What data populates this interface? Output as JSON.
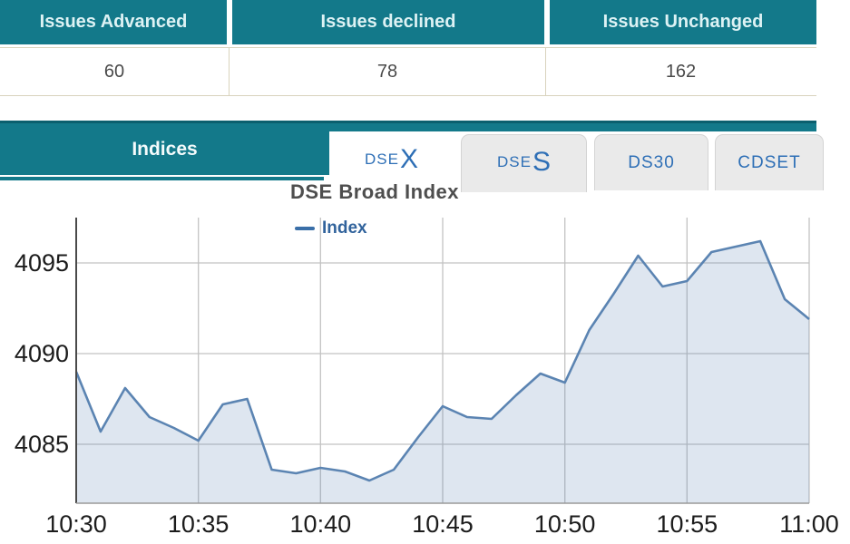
{
  "summary_table": {
    "columns": [
      {
        "header": "Issues Advanced",
        "value": "60"
      },
      {
        "header": "Issues declined",
        "value": "78"
      },
      {
        "header": "Issues Unchanged",
        "value": "162"
      }
    ]
  },
  "indices_panel": {
    "title": "Indices",
    "tabs": [
      {
        "text": "DSE",
        "big": "X",
        "active": true
      },
      {
        "text": "DSE",
        "big": "S",
        "active": false
      },
      {
        "text": "DS30",
        "big": "",
        "active": false
      },
      {
        "text": "CDSET",
        "big": "",
        "active": false
      }
    ]
  },
  "chart": {
    "title": "DSE Broad Index",
    "legend_label": "Index"
  },
  "chart_data": {
    "type": "area",
    "title": "DSE Broad Index",
    "legend": [
      "Index"
    ],
    "legend_position": "top-center-inside",
    "grid": true,
    "x": [
      "10:30",
      "10:31",
      "10:32",
      "10:33",
      "10:34",
      "10:35",
      "10:36",
      "10:37",
      "10:38",
      "10:39",
      "10:40",
      "10:41",
      "10:42",
      "10:43",
      "10:44",
      "10:45",
      "10:46",
      "10:47",
      "10:48",
      "10:49",
      "10:50",
      "10:51",
      "10:52",
      "10:53",
      "10:54",
      "10:55",
      "10:56",
      "10:57",
      "10:58",
      "10:59",
      "11:00"
    ],
    "x_tick_labels": [
      "10:30",
      "10:35",
      "10:40",
      "10:45",
      "10:50",
      "10:55",
      "11:00"
    ],
    "series": [
      {
        "name": "Index",
        "values": [
          4089.0,
          4085.7,
          4088.1,
          4086.5,
          4085.9,
          4085.2,
          4087.2,
          4087.5,
          4083.6,
          4083.4,
          4083.7,
          4083.5,
          4083.0,
          4083.6,
          4085.4,
          4087.1,
          4086.5,
          4086.4,
          4087.7,
          4088.9,
          4088.4,
          4091.3,
          4093.3,
          4095.4,
          4093.7,
          4094.0,
          4095.6,
          4095.9,
          4096.2,
          4093.0,
          4091.9
        ]
      }
    ],
    "y_ticks": [
      4085,
      4090,
      4095
    ],
    "ylim": [
      4081.75,
      4097.5
    ],
    "xlabel": "",
    "ylabel": "",
    "colors": {
      "teal_bar": "#13798a",
      "teal_bar_dark_edge": "#0b5f6e",
      "tab_text_blue": "#2e6fb6",
      "line": "#5b84b2",
      "area_fill_tint": "#dce3ee",
      "grid": "#c2c2c2",
      "y_axis": "#4a4a4a",
      "x_axis": "#9a9a9a",
      "tick_label": "#1c1c1c",
      "title_gray": "#4e4e4e",
      "legend_blue": "#31639c"
    }
  }
}
